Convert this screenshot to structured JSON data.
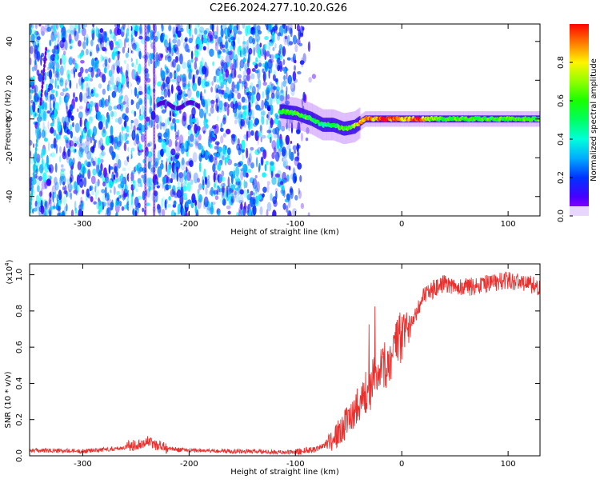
{
  "title": "C2E6.2024.277.10.20.G26",
  "chart_data": [
    {
      "type": "heatmap",
      "xlabel": "Height of straight line (km)",
      "ylabel": "Frequency (Hz)",
      "xlim": [
        -350,
        130
      ],
      "ylim": [
        -50,
        49
      ],
      "xticks": [
        -300,
        -200,
        -100,
        0,
        100
      ],
      "yticks": [
        -40,
        -20,
        0,
        20,
        40
      ],
      "colorbar": {
        "label": "Normalized spectral amplitude",
        "range": [
          0,
          1
        ],
        "ticks": [
          0.0,
          0.2,
          0.4,
          0.6,
          0.8
        ]
      },
      "ridge": [
        {
          "x": -115,
          "f": 4,
          "a": 0.5
        },
        {
          "x": -100,
          "f": 3,
          "a": 0.55
        },
        {
          "x": -85,
          "f": 0,
          "a": 0.55
        },
        {
          "x": -75,
          "f": -3,
          "a": 0.45
        },
        {
          "x": -65,
          "f": -3,
          "a": 0.5
        },
        {
          "x": -55,
          "f": -5,
          "a": 0.55
        },
        {
          "x": -45,
          "f": -4,
          "a": 0.6
        },
        {
          "x": -35,
          "f": 0,
          "a": 0.9
        },
        {
          "x": -25,
          "f": 0,
          "a": 0.8
        },
        {
          "x": -15,
          "f": 0,
          "a": 0.95
        },
        {
          "x": 0,
          "f": 0,
          "a": 0.75
        },
        {
          "x": 15,
          "f": 0,
          "a": 0.9
        },
        {
          "x": 30,
          "f": 0,
          "a": 0.6
        },
        {
          "x": 60,
          "f": 0,
          "a": 0.55
        },
        {
          "x": 90,
          "f": 0,
          "a": 0.55
        },
        {
          "x": 130,
          "f": 0,
          "a": 0.55
        }
      ]
    },
    {
      "type": "line",
      "xlabel": "Height of straight line (km)",
      "ylabel": "SNR (10 * v/v)",
      "yscale_label": "(x10",
      "yscale_exp": "4",
      "yscale_close": ")",
      "xlim": [
        -350,
        130
      ],
      "ylim": [
        0,
        1.06
      ],
      "xticks": [
        -300,
        -200,
        -100,
        0,
        100
      ],
      "yticks": [
        0.0,
        0.2,
        0.4,
        0.6,
        0.8,
        1.0
      ],
      "series": [
        {
          "color": "#e8302e",
          "x": [
            -350,
            -300,
            -260,
            -240,
            -220,
            -200,
            -150,
            -120,
            -100,
            -80,
            -70,
            -60,
            -50,
            -40,
            -30,
            -25,
            -20,
            -10,
            0,
            10,
            20,
            30,
            40,
            60,
            80,
            100,
            120,
            130
          ],
          "y": [
            0.03,
            0.025,
            0.045,
            0.08,
            0.04,
            0.03,
            0.025,
            0.02,
            0.02,
            0.04,
            0.07,
            0.12,
            0.2,
            0.3,
            0.35,
            0.4,
            0.45,
            0.55,
            0.65,
            0.75,
            0.88,
            0.92,
            0.95,
            0.93,
            0.95,
            0.97,
            0.95,
            0.93
          ]
        }
      ]
    }
  ]
}
